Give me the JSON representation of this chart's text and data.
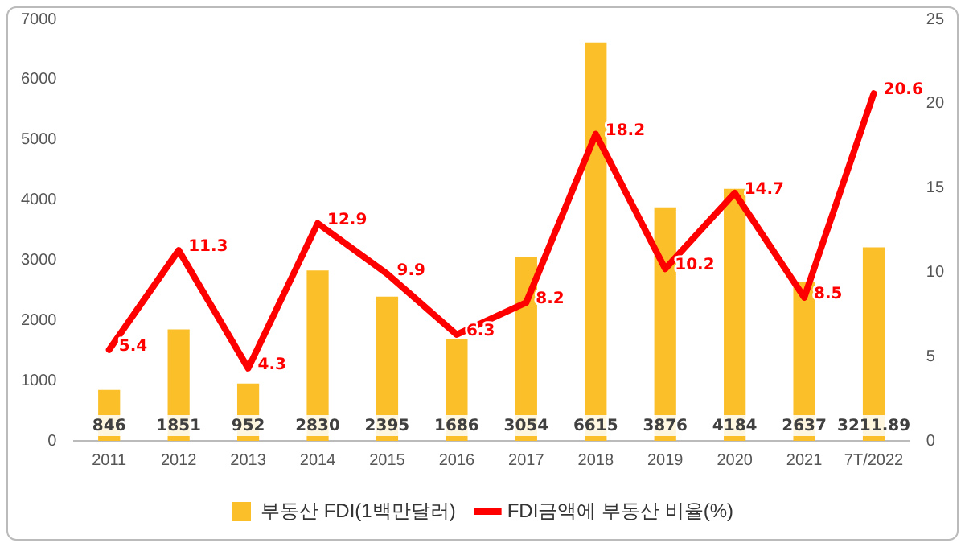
{
  "chart_data": {
    "type": "bar",
    "categories": [
      "2011",
      "2012",
      "2013",
      "2014",
      "2015",
      "2016",
      "2017",
      "2018",
      "2019",
      "2020",
      "2021",
      "7T/2022"
    ],
    "series": [
      {
        "name": "부동산 FDI(1백만달러)",
        "color": "#fbbf2a",
        "values": [
          846,
          1851,
          952,
          2830,
          2395,
          1686,
          3054,
          6615,
          3876,
          4184,
          2637,
          3211.89
        ]
      },
      {
        "name": "FDI금액에 부동산 비율(%)",
        "type": "line",
        "axis": "y2",
        "color": "#ff0000",
        "values": [
          5.4,
          11.3,
          4.3,
          12.9,
          9.9,
          6.3,
          8.2,
          18.2,
          10.2,
          14.7,
          8.5,
          20.6
        ]
      }
    ],
    "ylim": [
      0,
      7000
    ],
    "yticks": [
      0,
      1000,
      2000,
      3000,
      4000,
      5000,
      6000,
      7000
    ],
    "y2lim": [
      0,
      25
    ],
    "y2ticks": [
      0,
      5,
      10,
      15,
      20,
      25
    ],
    "data_labels": true,
    "legend": "bottom",
    "grid": false,
    "marker": "none",
    "line_style": "solid"
  }
}
